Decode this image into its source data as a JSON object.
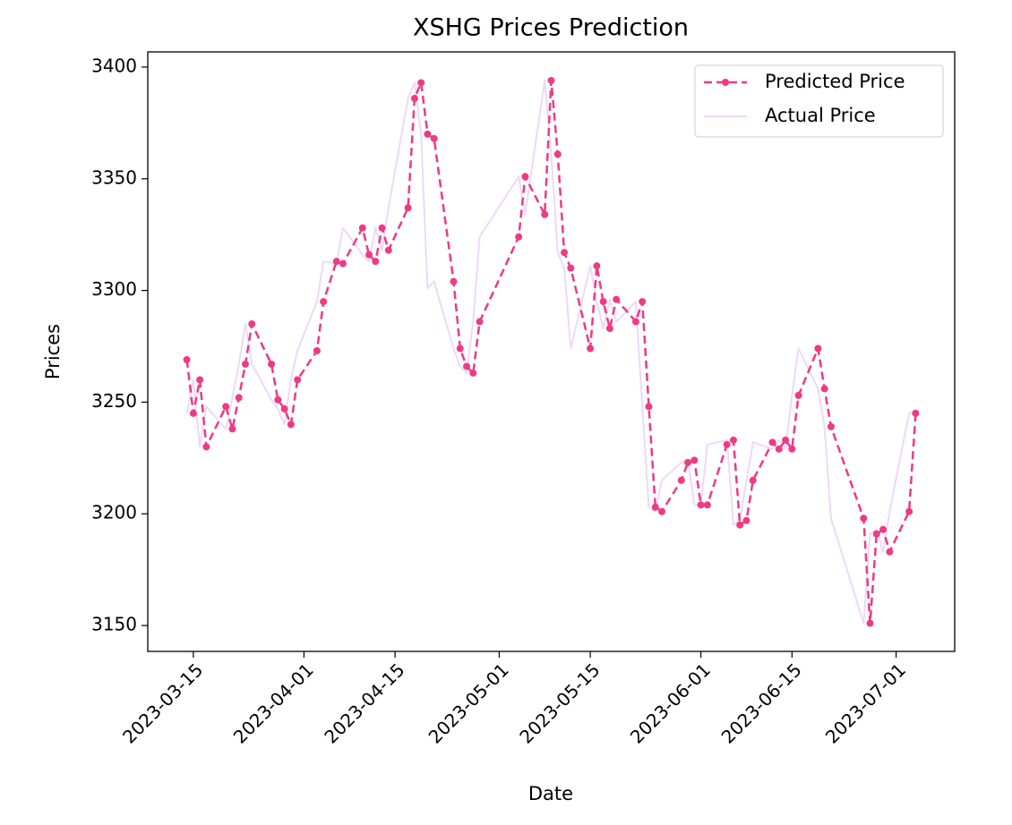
{
  "chart_data": {
    "type": "line",
    "title": "XSHG Prices Prediction",
    "x_label": "Date",
    "y_label": "Prices",
    "x": [
      "2023-03-14",
      "2023-03-15",
      "2023-03-16",
      "2023-03-17",
      "2023-03-20",
      "2023-03-21",
      "2023-03-22",
      "2023-03-23",
      "2023-03-24",
      "2023-03-27",
      "2023-03-28",
      "2023-03-29",
      "2023-03-30",
      "2023-03-31",
      "2023-04-03",
      "2023-04-04",
      "2023-04-06",
      "2023-04-07",
      "2023-04-10",
      "2023-04-11",
      "2023-04-12",
      "2023-04-13",
      "2023-04-14",
      "2023-04-17",
      "2023-04-18",
      "2023-04-19",
      "2023-04-20",
      "2023-04-21",
      "2023-04-24",
      "2023-04-25",
      "2023-04-26",
      "2023-04-27",
      "2023-04-28",
      "2023-05-04",
      "2023-05-05",
      "2023-05-08",
      "2023-05-09",
      "2023-05-10",
      "2023-05-11",
      "2023-05-12",
      "2023-05-15",
      "2023-05-16",
      "2023-05-17",
      "2023-05-18",
      "2023-05-19",
      "2023-05-22",
      "2023-05-23",
      "2023-05-24",
      "2023-05-25",
      "2023-05-26",
      "2023-05-29",
      "2023-05-30",
      "2023-05-31",
      "2023-06-01",
      "2023-06-02",
      "2023-06-05",
      "2023-06-06",
      "2023-06-07",
      "2023-06-08",
      "2023-06-09",
      "2023-06-12",
      "2023-06-13",
      "2023-06-14",
      "2023-06-15",
      "2023-06-16",
      "2023-06-19",
      "2023-06-20",
      "2023-06-21",
      "2023-06-26",
      "2023-06-27",
      "2023-06-28",
      "2023-06-29",
      "2023-06-30",
      "2023-07-03",
      "2023-07-04"
    ],
    "series": [
      {
        "name": "Predicted Price",
        "color": "#ee3a84",
        "linestyle": "dashed",
        "marker": "o",
        "linewidth": 2.5,
        "values": [
          3269,
          3245,
          3260,
          3230,
          3248,
          3238,
          3252,
          3267,
          3285,
          3267,
          3251,
          3247,
          3240,
          3260,
          3273,
          3295,
          3313,
          3312,
          3328,
          3316,
          3313,
          3328,
          3318,
          3337,
          3386,
          3393,
          3370,
          3368,
          3304,
          3274,
          3266,
          3263,
          3286,
          3324,
          3351,
          3334,
          3394,
          3361,
          3317,
          3310,
          3274,
          3311,
          3295,
          3283,
          3296,
          3286,
          3295,
          3248,
          3203,
          3201,
          3215,
          3223,
          3224,
          3204,
          3204,
          3231,
          3233,
          3195,
          3197,
          3215,
          3232,
          3229,
          3233,
          3229,
          3253,
          3274,
          3256,
          3239,
          3198,
          3151,
          3191,
          3193,
          3183,
          3201,
          3245
        ]
      },
      {
        "name": "Actual Price",
        "color": "#eed8fa",
        "linestyle": "solid",
        "marker": null,
        "linewidth": 2,
        "values": [
          3245,
          3260,
          3230,
          3248,
          3238,
          3252,
          3267,
          3285,
          3267,
          3251,
          3247,
          3240,
          3260,
          3273,
          3295,
          3313,
          3312,
          3328,
          3316,
          3313,
          3328,
          3318,
          3337,
          3386,
          3393,
          3370,
          3301,
          3304,
          3274,
          3266,
          3263,
          3286,
          3324,
          3351,
          3334,
          3394,
          3361,
          3317,
          3310,
          3274,
          3311,
          3295,
          3283,
          3296,
          3286,
          3295,
          3248,
          3203,
          3201,
          3215,
          3223,
          3224,
          3204,
          3204,
          3231,
          3233,
          3195,
          3197,
          3215,
          3232,
          3229,
          3233,
          3229,
          3253,
          3274,
          3256,
          3239,
          3198,
          3151,
          3191,
          3193,
          3183,
          3201,
          3245,
          3246
        ]
      }
    ],
    "xlim": [
      "2023-03-08",
      "2023-07-10"
    ],
    "xticks": [
      "2023-03-15",
      "2023-04-01",
      "2023-04-15",
      "2023-05-01",
      "2023-05-15",
      "2023-06-01",
      "2023-06-15",
      "2023-07-01"
    ],
    "ylim": [
      3138.4,
      3406.8
    ],
    "yticks": [
      3150,
      3200,
      3250,
      3300,
      3350,
      3400
    ],
    "legend": "upper right"
  }
}
